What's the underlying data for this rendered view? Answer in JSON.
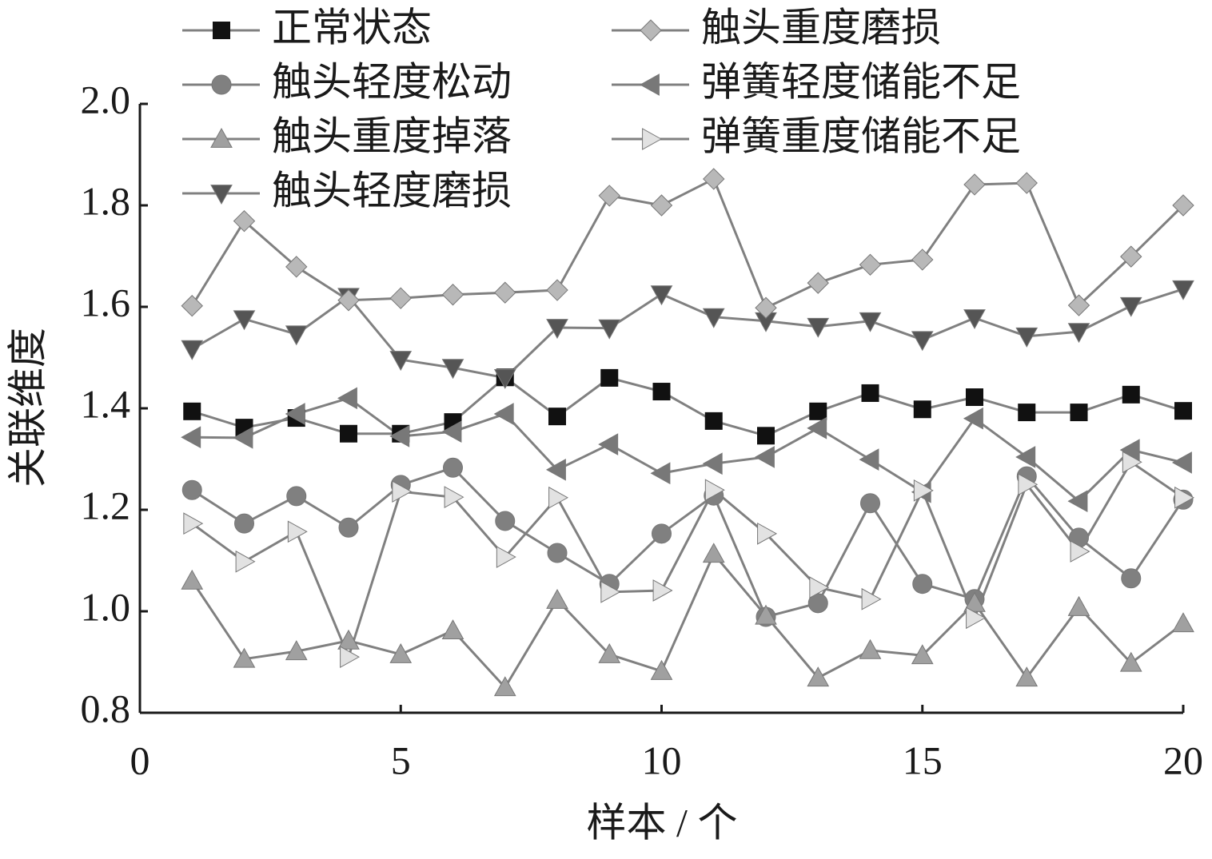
{
  "chart_data": {
    "type": "line",
    "x_label": "样本 / 个",
    "y_label": "关联维度",
    "x": [
      1,
      2,
      3,
      4,
      5,
      6,
      7,
      8,
      9,
      10,
      11,
      12,
      13,
      14,
      15,
      16,
      17,
      18,
      19,
      20
    ],
    "xlim": [
      0,
      20
    ],
    "xticks": [
      0,
      5,
      10,
      15,
      20
    ],
    "ylim": [
      0.8,
      2.0
    ],
    "yticks": [
      0.8,
      {
        "value": 1.0,
        "label": "1.0"
      },
      1.2,
      1.4,
      1.6,
      1.8,
      {
        "value": 2.0,
        "label": "2.0"
      }
    ],
    "series": [
      {
        "name": "正常状态",
        "color": "#111111",
        "marker": "square",
        "values": [
          1.394,
          1.362,
          1.381,
          1.35,
          1.35,
          1.373,
          1.461,
          1.384,
          1.46,
          1.433,
          1.375,
          1.346,
          1.394,
          1.43,
          1.398,
          1.422,
          1.392,
          1.392,
          1.427,
          1.395
        ]
      },
      {
        "name": "触头轻度松动",
        "color": "#808080",
        "marker": "circle",
        "values": [
          1.239,
          1.173,
          1.227,
          1.165,
          1.249,
          1.283,
          1.178,
          1.115,
          1.054,
          1.153,
          1.228,
          0.989,
          1.016,
          1.213,
          1.054,
          1.024,
          1.266,
          1.145,
          1.065,
          1.22
        ]
      },
      {
        "name": "触头重度掉落",
        "color": "#a0a0a0",
        "marker": "triangle-up",
        "values": [
          1.06,
          0.906,
          0.921,
          0.942,
          0.915,
          0.962,
          0.85,
          1.022,
          0.915,
          0.882,
          1.113,
          0.991,
          0.869,
          0.923,
          0.913,
          1.016,
          0.869,
          1.008,
          0.898,
          0.976
        ]
      },
      {
        "name": "触头轻度磨损",
        "color": "#555555",
        "marker": "triangle-down",
        "values": [
          1.517,
          1.576,
          1.546,
          1.62,
          1.496,
          1.48,
          1.46,
          1.559,
          1.558,
          1.625,
          1.58,
          1.572,
          1.561,
          1.572,
          1.535,
          1.578,
          1.542,
          1.551,
          1.602,
          1.635
        ]
      },
      {
        "name": "触头重度磨损",
        "color": "#b8b8b8",
        "marker": "diamond",
        "values": [
          1.602,
          1.769,
          1.679,
          1.613,
          1.617,
          1.624,
          1.628,
          1.633,
          1.819,
          1.8,
          1.852,
          1.598,
          1.647,
          1.683,
          1.693,
          1.841,
          1.844,
          1.603,
          1.699,
          1.8
        ]
      },
      {
        "name": "弹簧轻度储能不足",
        "color": "#787878",
        "marker": "triangle-left",
        "values": [
          1.343,
          1.342,
          1.389,
          1.42,
          1.345,
          1.354,
          1.389,
          1.279,
          1.329,
          1.272,
          1.291,
          1.304,
          1.361,
          1.299,
          1.235,
          1.38,
          1.304,
          1.217,
          1.318,
          1.293
        ]
      },
      {
        "name": "弹簧重度储能不足",
        "color": "#e2e2e2",
        "marker": "triangle-right",
        "values": [
          1.173,
          1.098,
          1.157,
          0.91,
          1.236,
          1.225,
          1.107,
          1.224,
          1.038,
          1.041,
          1.239,
          1.153,
          1.047,
          1.024,
          1.238,
          0.987,
          1.25,
          1.118,
          1.294,
          1.224
        ]
      }
    ]
  }
}
